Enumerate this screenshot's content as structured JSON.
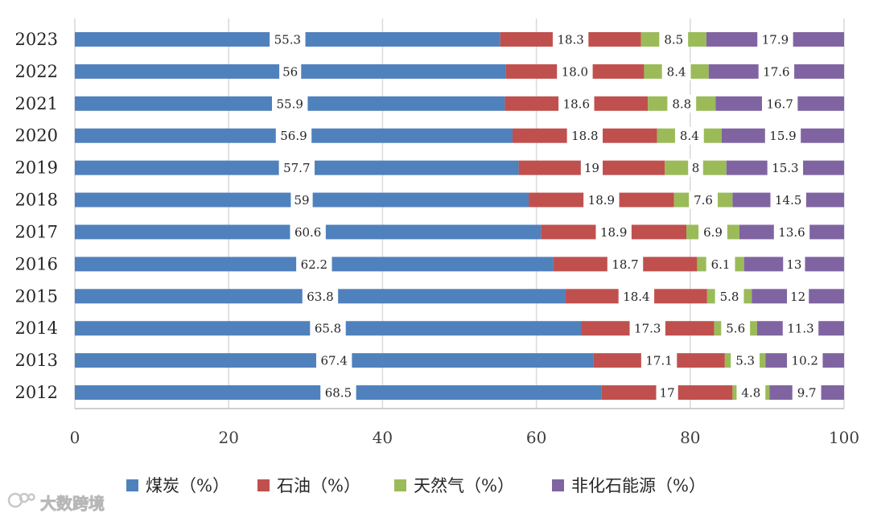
{
  "chart_data": {
    "type": "bar",
    "orientation": "horizontal",
    "stacked": true,
    "title": "",
    "xlabel": "",
    "ylabel": "",
    "xlim": [
      0,
      100
    ],
    "x_ticks": [
      "0",
      "20",
      "40",
      "60",
      "80",
      "100"
    ],
    "categories": [
      "2023",
      "2022",
      "2021",
      "2020",
      "2019",
      "2018",
      "2017",
      "2016",
      "2015",
      "2014",
      "2013",
      "2012"
    ],
    "series": [
      {
        "name": "煤炭（%）",
        "color": "#4f81bd",
        "values": [
          55.3,
          56,
          55.9,
          56.9,
          57.7,
          59,
          60.6,
          62.2,
          63.8,
          65.8,
          67.4,
          68.5
        ],
        "labels": [
          "55.3",
          "56",
          "55.9",
          "56.9",
          "57.7",
          "59",
          "60.6",
          "62.2",
          "63.8",
          "65.8",
          "67.4",
          "68.5"
        ]
      },
      {
        "name": "石油（%）",
        "color": "#c0504d",
        "values": [
          18.3,
          18.0,
          18.6,
          18.8,
          19,
          18.9,
          18.9,
          18.7,
          18.4,
          17.3,
          17.1,
          17
        ],
        "labels": [
          "18.3",
          "18.0",
          "18.6",
          "18.8",
          "19",
          "18.9",
          "18.9",
          "18.7",
          "18.4",
          "17.3",
          "17.1",
          "17"
        ]
      },
      {
        "name": "天然气（%）",
        "color": "#9bbb59",
        "values": [
          8.5,
          8.4,
          8.8,
          8.4,
          8,
          7.6,
          6.9,
          6.1,
          5.8,
          5.6,
          5.3,
          4.8
        ],
        "labels": [
          "8.5",
          "8.4",
          "8.8",
          "8.4",
          "8",
          "7.6",
          "6.9",
          "6.1",
          "5.8",
          "5.6",
          "5.3",
          "4.8"
        ]
      },
      {
        "name": "非化石能源（%）",
        "color": "#8064a2",
        "values": [
          17.9,
          17.6,
          16.7,
          15.9,
          15.3,
          14.5,
          13.6,
          13,
          12,
          11.3,
          10.2,
          9.7
        ],
        "labels": [
          "17.9",
          "17.6",
          "16.7",
          "15.9",
          "15.3",
          "14.5",
          "13.6",
          "13",
          "12",
          "11.3",
          "10.2",
          "9.7"
        ]
      }
    ],
    "legend": "bottom",
    "grid": true
  },
  "watermark": {
    "text": "大数跨境",
    "icon": "brand-logo-icon"
  }
}
